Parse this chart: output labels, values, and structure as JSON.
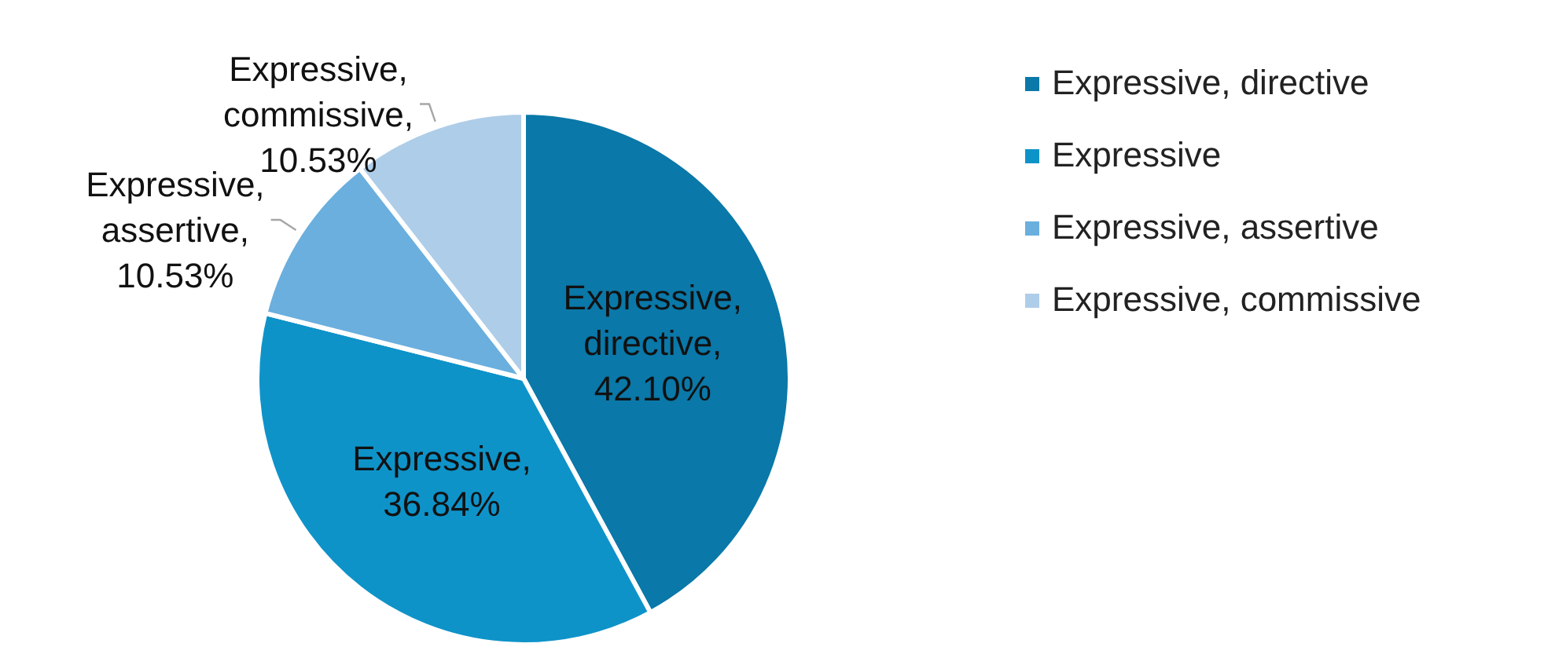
{
  "chart_data": {
    "type": "pie",
    "categories": [
      "Expressive, directive",
      "Expressive",
      "Expressive, assertive",
      "Expressive, commissive"
    ],
    "values": [
      42.1,
      36.84,
      10.53,
      10.53
    ],
    "value_labels": [
      "Expressive, directive, 42.10%",
      "Expressive, 36.84%",
      "Expressive, assertive, 10.53%",
      "Expressive, commissive, 10.53%"
    ],
    "colors": [
      "#0a78a8",
      "#0e93c9",
      "#6aafde",
      "#aecde8"
    ],
    "legend": "right"
  }
}
